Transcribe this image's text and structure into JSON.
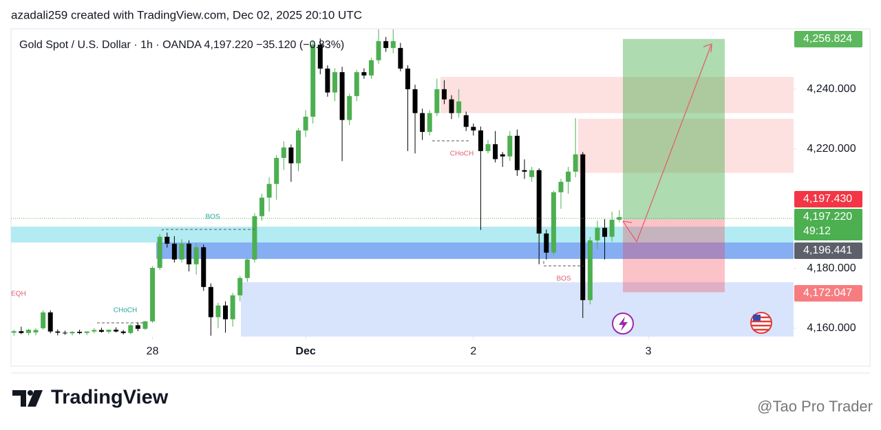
{
  "chart_data": {
    "type": "candlestick",
    "credit": "azadali259 created with TradingView.com, Dec 02, 2025 20:10 UTC",
    "title": "Gold Spot / U.S. Dollar · 1h · OANDA  4,197.220  −35.120 (−0.83%)",
    "logo_text": "TradingView",
    "watermark": "@Tao Pro Trader",
    "x": [
      0,
      1,
      2,
      3,
      4,
      5,
      6,
      7,
      8,
      9,
      10,
      11,
      12,
      13,
      14,
      15,
      16,
      17,
      18,
      19,
      20,
      21,
      22,
      23,
      24,
      25,
      26,
      27,
      28,
      29,
      30,
      31,
      32,
      33,
      34,
      35,
      36,
      37,
      38,
      39,
      40,
      41,
      42,
      43,
      44,
      45,
      46,
      47,
      48,
      49,
      50,
      51,
      52,
      53,
      54,
      55,
      56,
      57,
      58,
      59,
      60,
      61,
      62,
      63,
      64,
      65,
      66,
      67,
      68,
      69,
      70,
      71,
      72,
      73,
      74,
      75,
      76,
      77,
      78,
      79,
      80,
      81,
      82,
      83
    ],
    "open": [
      4158.5,
      4159,
      4158.4,
      4158.6,
      4160,
      4165.3,
      4158.9,
      4158.5,
      4158.3,
      4158.8,
      4158.4,
      4158.9,
      4159.4,
      4158.8,
      4159.5,
      4158.9,
      4158.4,
      4161,
      4159.8,
      4162.3,
      4180.2,
      4190.6,
      4188.3,
      4183.0,
      4188.3,
      4181.4,
      4187.1,
      4173.8,
      4163.7,
      4167.6,
      4163.0,
      4171.0,
      4176.8,
      4183.0,
      4197.5,
      4203.7,
      4208.3,
      4217.0,
      4220.5,
      4215.2,
      4226.2,
      4230.8,
      4254.9,
      4246.9,
      4238.9,
      4245.7,
      4229.7,
      4237.7,
      4245.7,
      4244.6,
      4249.7,
      4256.1,
      4253.8,
      4253.8,
      4246.9,
      4240.0,
      4232.0,
      4225.7,
      4232.0,
      4240.0,
      4236.6,
      4232.0,
      4231.3,
      4227.4,
      4226.2,
      4219.3,
      4221.6,
      4218.2,
      4217.5,
      4224.4,
      4212.9,
      4210.6,
      4212.9,
      4191.7,
      4185.3,
      4205.5,
      4209.0,
      4212.4,
      4218.2,
      4169.4,
      4189.4,
      4193.6,
      4190.6,
      4196.3
    ],
    "high": [
      4159.5,
      4160.5,
      4159.8,
      4160,
      4166,
      4166,
      4159.6,
      4159.2,
      4159,
      4159.5,
      4159,
      4160,
      4160.2,
      4159.6,
      4160.3,
      4159.4,
      4161.5,
      4162,
      4162.5,
      4180.8,
      4191.5,
      4192,
      4190.8,
      4189.8,
      4189.4,
      4188.5,
      4188,
      4175,
      4168.5,
      4169,
      4171.8,
      4177.5,
      4183.5,
      4198.5,
      4205,
      4210.5,
      4218,
      4222.5,
      4221.5,
      4227,
      4233,
      4256,
      4257,
      4248,
      4247,
      4247.5,
      4238.5,
      4246.5,
      4247,
      4250.5,
      4260,
      4257.5,
      4260,
      4255.5,
      4248,
      4241.5,
      4233.5,
      4233,
      4243.5,
      4243,
      4238,
      4240,
      4232.5,
      4228.5,
      4227.5,
      4223,
      4226,
      4219,
      4226,
      4226.5,
      4216.5,
      4214,
      4213.5,
      4193,
      4206,
      4210,
      4214,
      4230.3,
      4219,
      4190.5,
      4196,
      4196.5,
      4199,
      4199.5
    ],
    "low": [
      4157.5,
      4158,
      4157.6,
      4157.6,
      4159.5,
      4158.3,
      4157.6,
      4157.8,
      4157.6,
      4158,
      4157.7,
      4158.3,
      4158.5,
      4158.2,
      4158.6,
      4157.9,
      4158,
      4159,
      4159.4,
      4161.8,
      4179.5,
      4187,
      4182,
      4182,
      4179,
      4178,
      4172.5,
      4157.5,
      4160,
      4158.5,
      4160.5,
      4169,
      4175.5,
      4182,
      4196,
      4199,
      4203,
      4213,
      4209,
      4212.5,
      4224,
      4228.5,
      4245,
      4237.5,
      4236,
      4215.9,
      4228,
      4236,
      4243.5,
      4243.5,
      4248.5,
      4252.5,
      4252,
      4246,
      4219.3,
      4218.5,
      4223,
      4224.5,
      4231,
      4235,
      4230,
      4230.5,
      4226,
      4224.5,
      4192.9,
      4218.5,
      4215.5,
      4214,
      4216,
      4211,
      4210,
      4209,
      4181.4,
      4183,
      4184.5,
      4200,
      4205,
      4210.5,
      4163.4,
      4168,
      4186.5,
      4183,
      4189,
      4195.5
    ],
    "close": [
      4159.0,
      4158.4,
      4159.5,
      4159.4,
      4165.3,
      4158.9,
      4158.5,
      4158.3,
      4158.8,
      4158.4,
      4158.9,
      4159.4,
      4158.8,
      4159.5,
      4158.9,
      4158.4,
      4161,
      4159.8,
      4162.3,
      4180.2,
      4190.6,
      4188.3,
      4183.0,
      4188.3,
      4181.4,
      4187.1,
      4173.8,
      4163.7,
      4167.6,
      4163.0,
      4171.0,
      4176.8,
      4183.0,
      4197.5,
      4203.7,
      4208.3,
      4217.0,
      4220.5,
      4215.2,
      4226.2,
      4230.8,
      4254.9,
      4246.9,
      4238.9,
      4245.7,
      4229.7,
      4237.7,
      4245.7,
      4244.6,
      4249.7,
      4256.1,
      4253.8,
      4256.1,
      4246.9,
      4240.0,
      4232.0,
      4225.7,
      4232.0,
      4240.0,
      4236.6,
      4232.0,
      4235.9,
      4227.4,
      4226.2,
      4219.3,
      4221.6,
      4216.6,
      4217.5,
      4224.4,
      4212.9,
      4212.4,
      4212.9,
      4191.7,
      4185.3,
      4205.5,
      4209.0,
      4212.4,
      4218.2,
      4169.4,
      4189.4,
      4193.6,
      4190.6,
      4196.3,
      4197.22
    ],
    "up_color": "#4caf50",
    "down_color": "#000000",
    "xlim": [
      -0.4,
      106.9
    ],
    "xticks": [
      {
        "value": 19,
        "label": "28"
      },
      {
        "value": 40,
        "label": "Dec"
      },
      {
        "value": 63,
        "label": "2"
      },
      {
        "value": 87,
        "label": "3"
      }
    ],
    "ylim": [
      4157.2,
      4260.2
    ],
    "yticks": [
      {
        "value": 4160,
        "label": "4,160.000"
      },
      {
        "value": 4180,
        "label": "4,180.000"
      },
      {
        "value": 4220,
        "label": "4,220.000"
      },
      {
        "value": 4240,
        "label": "4,240.000"
      }
    ],
    "zones": [
      {
        "low": 4232.0,
        "high": 4244.1,
        "color": "#fde0e0"
      },
      {
        "low": 4212.0,
        "high": 4230.1,
        "color": "#fde0e0"
      },
      {
        "low": 4188.7,
        "high": 4194.0,
        "color": "#b2ebf2"
      },
      {
        "low": 4183.2,
        "high": 4188.7,
        "color": "#86aef2"
      },
      {
        "low": 4157.2,
        "high": 4175.4,
        "color": "#d8e4fb"
      }
    ],
    "position": {
      "target": 4256.824,
      "entry": 4196.441,
      "stop": 4172.047
    },
    "annotations": [
      "BOS",
      "CHoCH",
      "CHoCH",
      "BOS",
      "EQH"
    ],
    "price_labels": [
      {
        "value": 4256.824,
        "label": "4,256.824",
        "color": "#5cb85c"
      },
      {
        "value": 4197.43,
        "label": "4,197.430",
        "color": "#f23645"
      },
      {
        "value": 4197.22,
        "label": "4,197.220",
        "countdown": "49:12",
        "color": "#4caf50"
      },
      {
        "value": 4196.441,
        "label": "4,196.441",
        "color": "#5d606b"
      },
      {
        "value": 4172.047,
        "label": "4,172.047",
        "color": "#f77c80"
      }
    ]
  }
}
